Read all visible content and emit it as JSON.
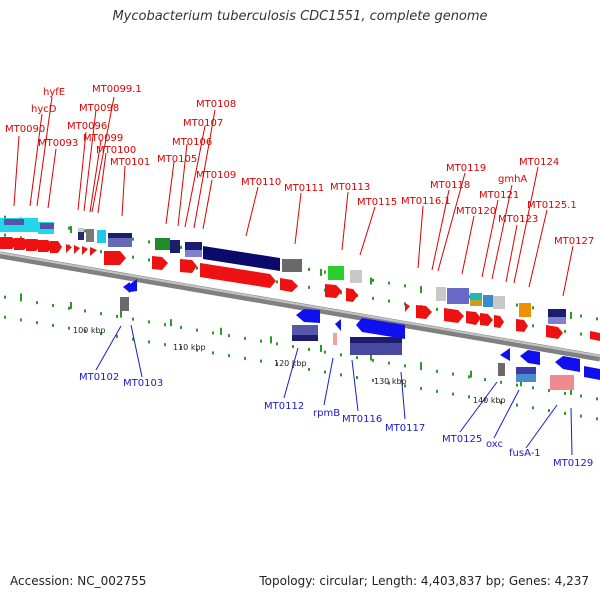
{
  "title": "Mycobacterium tuberculosis CDC1551, complete genome",
  "footer": {
    "accession": "Accession: NC_002755",
    "stats": "Topology: circular; Length: 4,403,837 bp; Genes: 4,237"
  },
  "colors": {
    "forward_label": "#dd0000",
    "reverse_label": "#1a1ad0",
    "forward_arrow": "#ee1111",
    "reverse_arrow": "#1010ee",
    "backbone": "#8c8c8c",
    "tick": "#2a9a2a"
  },
  "ticks": [
    "100 kbp",
    "110 kbp",
    "120 kbp",
    "130 kbp",
    "140 kbp"
  ],
  "forward_genes": [
    "hyfE",
    "hycD",
    "MT0090",
    "MT0093",
    "MT0096",
    "MT0098",
    "MT0099.1",
    "MT0099",
    "MT0100",
    "MT0101",
    "MT0105",
    "MT0106",
    "MT0107",
    "MT0108",
    "MT0109",
    "MT0110",
    "MT0111",
    "MT0113",
    "MT0115",
    "MT0116.1",
    "MT0118",
    "MT0119",
    "MT0120",
    "MT0121",
    "gmhA",
    "MT0123",
    "MT0124",
    "MT0125.1",
    "MT0127"
  ],
  "reverse_genes": [
    "MT0102",
    "MT0103",
    "MT0112",
    "rpmB",
    "MT0116",
    "MT0117",
    "MT0125",
    "oxc",
    "fusA-1",
    "MT0129"
  ]
}
